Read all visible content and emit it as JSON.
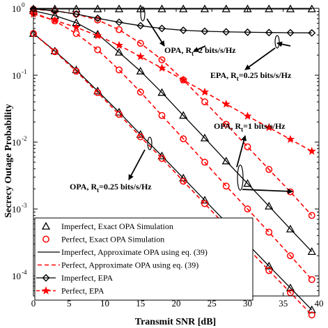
{
  "chart_data": {
    "type": "line",
    "xlabel": "Transmit SNR [dB]",
    "ylabel": "Secrecy Outage Probability",
    "xlim": [
      0,
      40
    ],
    "ylim": [
      5e-05,
      1
    ],
    "yscale": "log",
    "grid": false,
    "legend_position": "bottom-left",
    "x_ticks": [
      {
        "value": 0,
        "label": "0"
      },
      {
        "value": 5,
        "label": "5"
      },
      {
        "value": 10,
        "label": "10"
      },
      {
        "value": 15,
        "label": "15"
      },
      {
        "value": 20,
        "label": "20"
      },
      {
        "value": 25,
        "label": "25"
      },
      {
        "value": 30,
        "label": "30"
      },
      {
        "value": 35,
        "label": "35"
      },
      {
        "value": 40,
        "label": "40"
      }
    ],
    "y_ticks": [
      {
        "value": 1,
        "base": "10",
        "exp": "0"
      },
      {
        "value": 0.1,
        "base": "10",
        "exp": "-1"
      },
      {
        "value": 0.01,
        "base": "10",
        "exp": "-2"
      },
      {
        "value": 0.001,
        "base": "10",
        "exp": "-3"
      },
      {
        "value": 0.0001,
        "base": "10",
        "exp": "-4"
      }
    ],
    "legend": [
      {
        "label": "Imperfect, Exact OPA Simulation",
        "style": "black-triangle"
      },
      {
        "label": "Perfect, Exact OPA Simulation",
        "style": "red-circle"
      },
      {
        "label": "Imperfect, Approximate OPA using eq. (39)",
        "style": "black-solid-line"
      },
      {
        "label": "Perfect, Approximate OPA using eq. (39)",
        "style": "red-dashed-line"
      },
      {
        "label": "Imperfect, EPA",
        "style": "black-diamond-line"
      },
      {
        "label": "Perfect, EPA",
        "style": "red-star-dashed-line"
      }
    ],
    "annotations": [
      {
        "main": "OPA, R",
        "sub": "t",
        "tail": "=2 bits/s/Hz"
      },
      {
        "main": "EPA, R",
        "sub": "t",
        "tail": "=0.25 bits/s/Hz"
      },
      {
        "main": "OPA, R",
        "sub": "t",
        "tail": "=1 bits/s/Hz"
      },
      {
        "main": "OPA, R",
        "sub": "t",
        "tail": "=0.25 bits/s/Hz"
      }
    ],
    "series": [
      {
        "group": "Imperfect",
        "style": "black-solid",
        "marker": "triangle",
        "x": [
          0,
          3,
          6,
          9,
          12,
          15,
          18,
          21,
          24,
          27,
          30,
          33,
          36,
          39
        ],
        "y": [
          0.42,
          0.23,
          0.12,
          0.058,
          0.028,
          0.013,
          0.0062,
          0.0029,
          0.00135,
          0.00063,
          0.0003,
          0.00014,
          6.6e-05,
          3.1e-05
        ]
      },
      {
        "group": "Perfect",
        "style": "red-dashed",
        "marker": "circle",
        "x": [
          0,
          3,
          6,
          9,
          12,
          15,
          18,
          21,
          24,
          27,
          30,
          33,
          36,
          39
        ],
        "y": [
          0.42,
          0.225,
          0.115,
          0.055,
          0.026,
          0.012,
          0.0057,
          0.0026,
          0.0012,
          0.00055,
          0.00026,
          0.00012,
          5.6e-05,
          2.6e-05
        ]
      },
      {
        "group": "Imperfect",
        "style": "black-solid",
        "marker": "triangle",
        "x": [
          0,
          3,
          6,
          9,
          12,
          15,
          18,
          21,
          24,
          27,
          30,
          33,
          36,
          39
        ],
        "y": [
          0.92,
          0.78,
          0.61,
          0.41,
          0.22,
          0.115,
          0.055,
          0.025,
          0.0115,
          0.0052,
          0.0024,
          0.0011,
          0.0005,
          0.00023
        ]
      },
      {
        "group": "Perfect",
        "style": "red-dashed",
        "marker": "circle",
        "x": [
          0,
          3,
          6,
          9,
          12,
          15,
          18,
          21,
          24,
          27,
          30,
          33,
          36,
          39
        ],
        "y": [
          0.86,
          0.65,
          0.42,
          0.24,
          0.12,
          0.056,
          0.025,
          0.0112,
          0.005,
          0.0022,
          0.001,
          0.00045,
          0.0002,
          8.8e-05
        ]
      },
      {
        "group": "Imperfect",
        "style": "black-solid",
        "marker": "triangle",
        "x": [
          0,
          3,
          6,
          9,
          12,
          15,
          18,
          21,
          24,
          27,
          30,
          33,
          36,
          39
        ],
        "y": [
          0.98,
          0.98,
          0.98,
          0.98,
          0.98,
          0.98,
          0.98,
          0.98,
          0.98,
          0.98,
          0.98,
          0.98,
          0.98,
          0.98
        ]
      },
      {
        "group": "Perfect",
        "style": "red-dashed",
        "marker": "circle",
        "x": [
          0,
          3,
          6,
          9,
          12,
          15,
          18,
          21,
          24,
          27,
          30,
          33,
          36,
          39
        ],
        "y": [
          0.97,
          0.92,
          0.82,
          0.67,
          0.48,
          0.3,
          0.17,
          0.085,
          0.04,
          0.0185,
          0.0085,
          0.0039,
          0.0018,
          0.0008
        ]
      },
      {
        "group": "Imperfect",
        "style": "black-solid",
        "marker": "diamond",
        "x": [
          0,
          3,
          6,
          9,
          12,
          15,
          18,
          21,
          24,
          27,
          30,
          33,
          36,
          39
        ],
        "y": [
          0.98,
          0.92,
          0.82,
          0.71,
          0.62,
          0.55,
          0.5,
          0.47,
          0.455,
          0.445,
          0.44,
          0.435,
          0.432,
          0.43
        ]
      },
      {
        "group": "Perfect",
        "style": "red-dashed",
        "marker": "star",
        "x": [
          0,
          3,
          6,
          9,
          12,
          15,
          18,
          21,
          24,
          27,
          30,
          33,
          36,
          39
        ],
        "y": [
          0.82,
          0.66,
          0.52,
          0.39,
          0.28,
          0.19,
          0.128,
          0.085,
          0.056,
          0.037,
          0.0245,
          0.0165,
          0.011,
          0.0073
        ]
      }
    ]
  }
}
